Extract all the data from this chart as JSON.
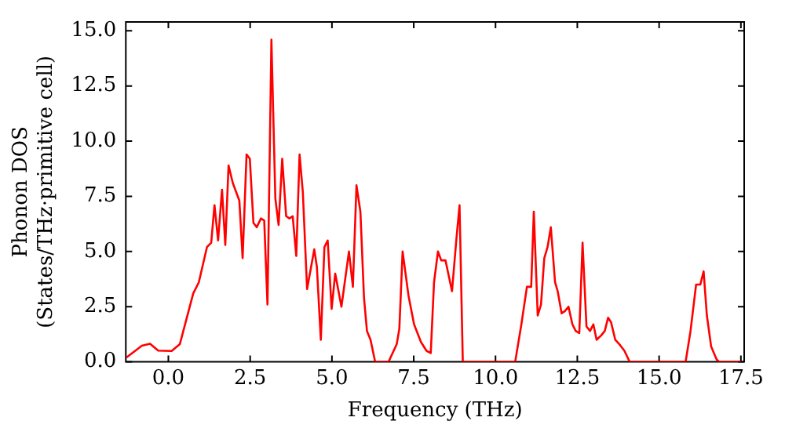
{
  "chart_data": {
    "type": "line",
    "xlabel": "Frequency (THz)",
    "ylabel": "Phonon DOS\n(States/THz·primitive cell)",
    "xlim": [
      -1.3,
      17.6
    ],
    "ylim": [
      0,
      15.4
    ],
    "xticks": [
      {
        "value": 0,
        "label": "0.0"
      },
      {
        "value": 2.5,
        "label": "2.5"
      },
      {
        "value": 5,
        "label": "5.0"
      },
      {
        "value": 7.5,
        "label": "7.5"
      },
      {
        "value": 10,
        "label": "10.0"
      },
      {
        "value": 12.5,
        "label": "12.5"
      },
      {
        "value": 15,
        "label": "15.0"
      },
      {
        "value": 17.5,
        "label": "17.5"
      }
    ],
    "yticks": [
      {
        "value": 0,
        "label": "0.0"
      },
      {
        "value": 2.5,
        "label": "2.5"
      },
      {
        "value": 5,
        "label": "5.0"
      },
      {
        "value": 7.5,
        "label": "7.5"
      },
      {
        "value": 10,
        "label": "10.0"
      },
      {
        "value": 12.5,
        "label": "12.5"
      },
      {
        "value": 15,
        "label": "15.0"
      }
    ],
    "grid": false,
    "legend": false,
    "marker": "none",
    "line_style": "solid",
    "series": [
      {
        "color": "#ff0000",
        "x": [
          -1.28,
          -0.81,
          -0.56,
          -0.31,
          0.1,
          0.35,
          0.76,
          0.93,
          1.18,
          1.31,
          1.41,
          1.52,
          1.64,
          1.74,
          1.84,
          1.97,
          2.17,
          2.27,
          2.39,
          2.49,
          2.6,
          2.7,
          2.83,
          2.93,
          3.03,
          3.15,
          3.27,
          3.37,
          3.48,
          3.6,
          3.7,
          3.8,
          3.91,
          4.01,
          4.11,
          4.24,
          4.46,
          4.54,
          4.66,
          4.77,
          4.87,
          4.99,
          5.1,
          5.29,
          5.52,
          5.64,
          5.75,
          5.87,
          5.98,
          6.07,
          6.18,
          6.32,
          6.73,
          6.98,
          7.06,
          7.16,
          7.34,
          7.51,
          7.72,
          7.89,
          8.02,
          8.12,
          8.24,
          8.34,
          8.47,
          8.67,
          8.8,
          8.9,
          9.0,
          10.6,
          10.79,
          10.96,
          11.09,
          11.17,
          11.29,
          11.39,
          11.49,
          11.59,
          11.69,
          11.82,
          11.9,
          12.02,
          12.12,
          12.23,
          12.35,
          12.45,
          12.56,
          12.66,
          12.78,
          12.89,
          12.99,
          13.09,
          13.23,
          13.34,
          13.44,
          13.53,
          13.66,
          13.81,
          13.94,
          14.1,
          15.81,
          15.96,
          16.13,
          16.26,
          16.36,
          16.46,
          16.59,
          16.76,
          16.84,
          17.5
        ],
        "values": [
          0.2,
          0.73,
          0.82,
          0.51,
          0.49,
          0.8,
          3.1,
          3.6,
          5.2,
          5.4,
          7.1,
          5.5,
          7.8,
          5.3,
          8.9,
          8.1,
          7.3,
          4.7,
          9.4,
          9.2,
          6.3,
          6.1,
          6.5,
          6.4,
          2.6,
          14.6,
          7.4,
          6.2,
          9.2,
          6.6,
          6.5,
          6.6,
          4.8,
          9.4,
          7.7,
          3.3,
          5.1,
          4.3,
          1.0,
          5.2,
          5.5,
          2.4,
          4.0,
          2.5,
          5.0,
          3.4,
          8.0,
          6.8,
          2.9,
          1.4,
          1.0,
          0,
          0,
          0.8,
          1.5,
          5.0,
          3.0,
          1.7,
          0.9,
          0.5,
          0.4,
          3.6,
          5.0,
          4.6,
          4.6,
          3.2,
          5.5,
          7.1,
          0,
          0,
          1.7,
          3.4,
          3.4,
          6.8,
          2.1,
          2.6,
          4.7,
          5.2,
          6.1,
          3.6,
          3.2,
          2.2,
          2.3,
          2.5,
          1.7,
          1.4,
          1.3,
          5.4,
          1.6,
          1.4,
          1.7,
          1.0,
          1.2,
          1.4,
          2.0,
          1.8,
          1.0,
          0.75,
          0.5,
          0,
          0,
          1.4,
          3.5,
          3.5,
          4.1,
          2.1,
          0.7,
          0.1,
          0,
          0
        ]
      }
    ]
  }
}
